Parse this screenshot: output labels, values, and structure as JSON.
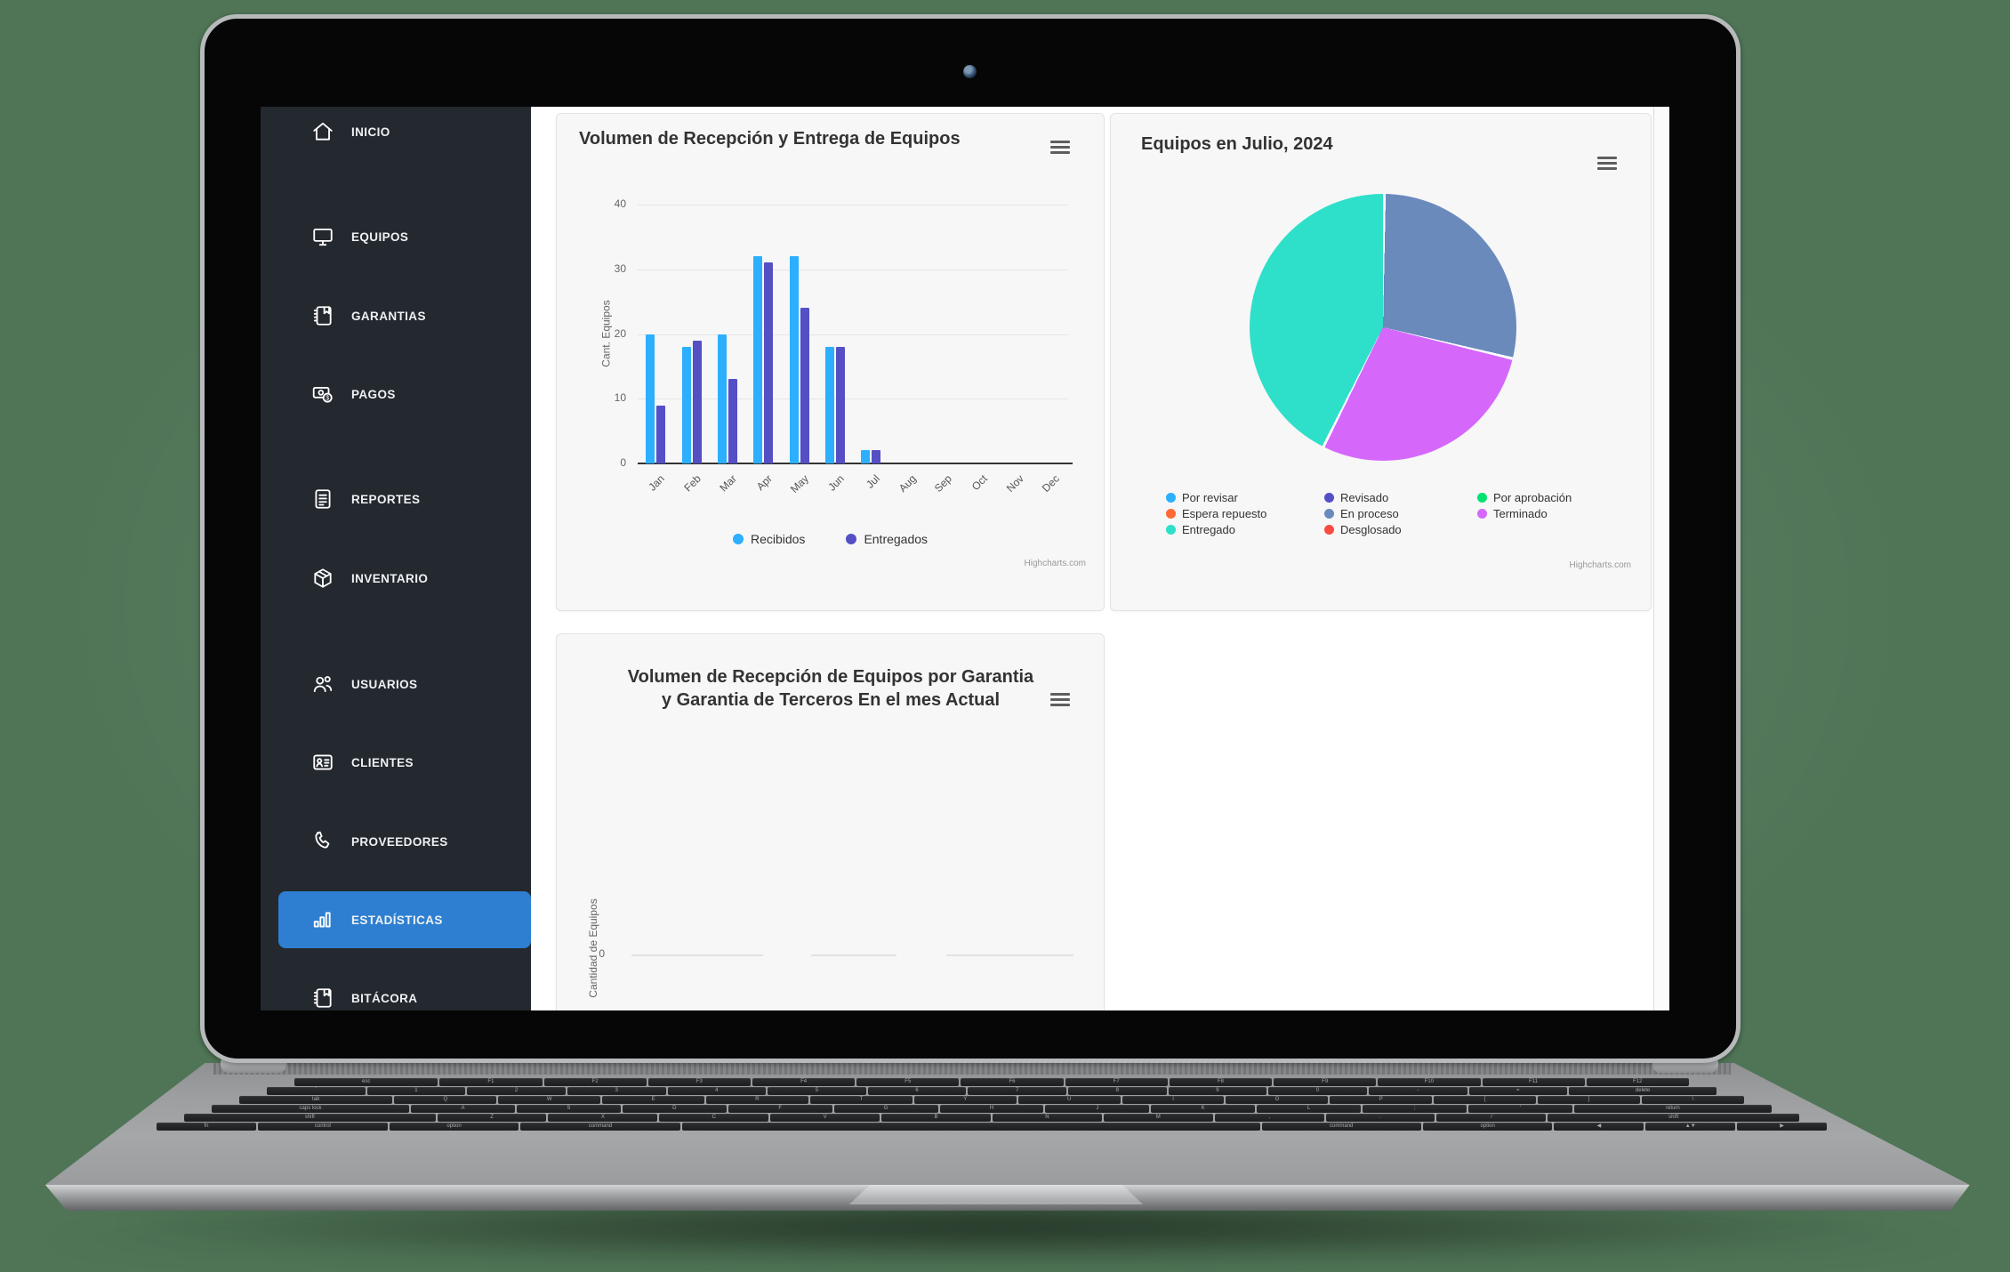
{
  "sidebar": {
    "items": [
      {
        "label": "INICIO",
        "icon": "home"
      },
      {
        "label": "EQUIPOS",
        "icon": "monitor"
      },
      {
        "label": "GARANTIAS",
        "icon": "journal"
      },
      {
        "label": "PAGOS",
        "icon": "money"
      },
      {
        "label": "REPORTES",
        "icon": "report"
      },
      {
        "label": "INVENTARIO",
        "icon": "box"
      },
      {
        "label": "USUARIOS",
        "icon": "users"
      },
      {
        "label": "CLIENTES",
        "icon": "id-card"
      },
      {
        "label": "PROVEEDORES",
        "icon": "phone"
      },
      {
        "label": "ESTADÍSTICAS",
        "icon": "bar-chart",
        "active": true
      },
      {
        "label": "BITÁCORA",
        "icon": "journal"
      }
    ],
    "active_color": "#2e7fd1",
    "bg_color": "#24282f"
  },
  "chart_data": [
    {
      "type": "bar",
      "title": "Volumen de Recepción y Entrega de Equipos",
      "categories": [
        "Jan",
        "Feb",
        "Mar",
        "Apr",
        "May",
        "Jun",
        "Jul",
        "Aug",
        "Sep",
        "Oct",
        "Nov",
        "Dec"
      ],
      "series": [
        {
          "name": "Recibidos",
          "color": "#2caffe",
          "values": [
            20,
            18,
            20,
            32,
            32,
            18,
            2,
            0,
            0,
            0,
            0,
            0
          ]
        },
        {
          "name": "Entregados",
          "color": "#544fc5",
          "values": [
            9,
            19,
            13,
            31,
            24,
            18,
            2,
            0,
            0,
            0,
            0,
            0
          ]
        }
      ],
      "xlabel": "",
      "ylabel": "Cant. Equipos",
      "ylim": [
        0,
        40
      ],
      "yticks": [
        0,
        10,
        20,
        30,
        40
      ],
      "grid": true,
      "legend_position": "bottom",
      "credits": "Highcharts.com"
    },
    {
      "type": "pie",
      "title": "Equipos en Julio, 2024",
      "slices": [
        {
          "name": "En proceso",
          "color": "#6b8abc",
          "pct": 28.6
        },
        {
          "name": "Terminado",
          "color": "#d568fb",
          "pct": 28.6
        },
        {
          "name": "Entregado",
          "color": "#2ee0ca",
          "pct": 42.8
        }
      ],
      "legend_position": "bottom",
      "legend": [
        {
          "label": "Por revisar",
          "color": "#2caffe"
        },
        {
          "label": "Revisado",
          "color": "#544fc5"
        },
        {
          "label": "Por aprobación",
          "color": "#00e272"
        },
        {
          "label": "Espera repuesto",
          "color": "#fe6a35"
        },
        {
          "label": "En proceso",
          "color": "#6b8abc"
        },
        {
          "label": "Terminado",
          "color": "#d568fb"
        },
        {
          "label": "Entregado",
          "color": "#2ee0ca"
        },
        {
          "label": "Desglosado",
          "color": "#fa4b42"
        }
      ],
      "credits": "Highcharts.com"
    },
    {
      "type": "bar",
      "title": "Volumen de Recepción de Equipos por Garantia y Garantia de Terceros En el mes Actual",
      "ylabel": "Cantidad de Equipos",
      "yticks": [
        0
      ],
      "categories": [],
      "series": [],
      "empty": true
    }
  ],
  "laptop": {
    "keyboard_rows": [
      [
        "esc",
        "F1",
        "F2",
        "F3",
        "F4",
        "F5",
        "F6",
        "F7",
        "F8",
        "F9",
        "F10",
        "F11",
        "F12"
      ],
      [
        "`",
        "1",
        "2",
        "3",
        "4",
        "5",
        "6",
        "7",
        "8",
        "9",
        "0",
        "-",
        "=",
        "delete"
      ],
      [
        "tab",
        "Q",
        "W",
        "E",
        "R",
        "T",
        "Y",
        "U",
        "I",
        "O",
        "P",
        "[",
        "]",
        "\\"
      ],
      [
        "caps lock",
        "A",
        "S",
        "D",
        "F",
        "G",
        "H",
        "J",
        "K",
        "L",
        ";",
        "'",
        "return"
      ],
      [
        "shift",
        "Z",
        "X",
        "C",
        "V",
        "B",
        "N",
        "M",
        ",",
        ".",
        "/",
        "shift"
      ],
      [
        "fn",
        "control",
        "option",
        "command",
        "",
        "command",
        "option",
        "◀",
        "▲▼",
        "▶"
      ]
    ]
  }
}
